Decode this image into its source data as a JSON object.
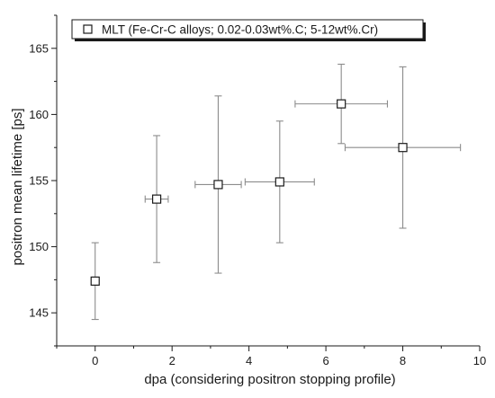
{
  "chart_data": {
    "type": "scatter",
    "xlabel": "dpa (considering positron stopping profile)",
    "ylabel": "positron mean lifetime [ps]",
    "xlim": [
      -1,
      10
    ],
    "ylim": [
      142.5,
      167.5
    ],
    "xticks": [
      0,
      2,
      4,
      6,
      8,
      10
    ],
    "yticks": [
      145,
      150,
      155,
      160,
      165
    ],
    "x_tick_labels": [
      "0",
      "2",
      "4",
      "6",
      "8",
      "10"
    ],
    "y_tick_labels": [
      "145",
      "150",
      "155",
      "160",
      "165"
    ],
    "grid": false,
    "legend_position": "top-left",
    "series": [
      {
        "name": "MLT (Fe-Cr-C alloys; 0.02-0.03wt%.C; 5-12wt%.Cr)",
        "marker": "open-square",
        "points": [
          {
            "x": 0,
            "y": 147.4,
            "y_err_low": 144.5,
            "y_err_high": 150.3,
            "x_err_low": null,
            "x_err_high": null
          },
          {
            "x": 1.6,
            "y": 153.6,
            "y_err_low": 148.8,
            "y_err_high": 158.4,
            "x_err_low": 1.3,
            "x_err_high": 1.9
          },
          {
            "x": 3.2,
            "y": 154.7,
            "y_err_low": 148.0,
            "y_err_high": 161.4,
            "x_err_low": 2.6,
            "x_err_high": 3.8
          },
          {
            "x": 4.8,
            "y": 154.9,
            "y_err_low": 150.3,
            "y_err_high": 159.5,
            "x_err_low": 3.9,
            "x_err_high": 5.7
          },
          {
            "x": 6.4,
            "y": 160.8,
            "y_err_low": 157.8,
            "y_err_high": 163.8,
            "x_err_low": 5.2,
            "x_err_high": 7.6
          },
          {
            "x": 8.0,
            "y": 157.5,
            "y_err_low": 151.4,
            "y_err_high": 163.6,
            "x_err_low": 6.5,
            "x_err_high": 9.5
          }
        ]
      }
    ]
  }
}
